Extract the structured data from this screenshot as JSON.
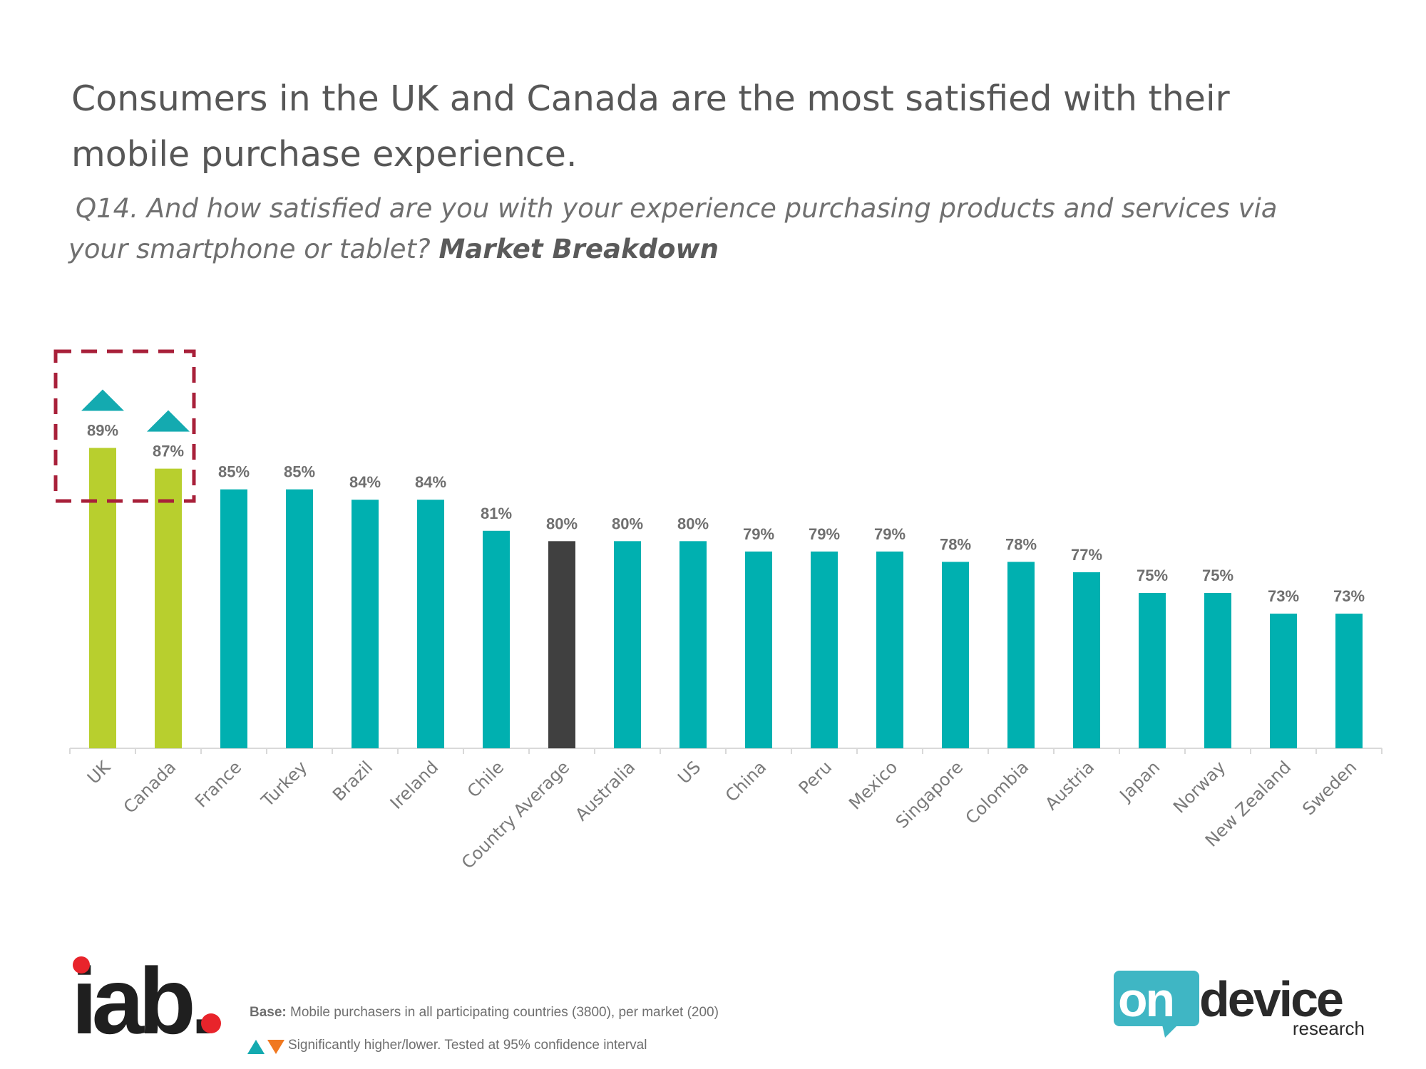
{
  "title": "Consumers in the UK and Canada are the most satisfied with their mobile purchase experience.",
  "subtitle": {
    "question": "Q14. And how satisfied are you with your experience purchasing products and services via your smartphone or tablet?",
    "emphasis": "Market Breakdown"
  },
  "colors": {
    "highlight": "#b8cf2e",
    "default": "#00b0b0",
    "average": "#404040",
    "box": "#a8203a",
    "up_marker": "#14aab0",
    "down_marker": "#f07820"
  },
  "chart_data": {
    "type": "bar",
    "categories": [
      "UK",
      "Canada",
      "France",
      "Turkey",
      "Brazil",
      "Ireland",
      "Chile",
      "Country Average",
      "Australia",
      "US",
      "China",
      "Peru",
      "Mexico",
      "Singapore",
      "Colombia",
      "Austria",
      "Japan",
      "Norway",
      "New Zealand",
      "Sweden"
    ],
    "values": [
      89,
      87,
      85,
      85,
      84,
      84,
      81,
      80,
      80,
      80,
      79,
      79,
      79,
      78,
      78,
      77,
      75,
      75,
      73,
      73
    ],
    "data_labels": [
      "89%",
      "87%",
      "85%",
      "85%",
      "84%",
      "84%",
      "81%",
      "80%",
      "80%",
      "80%",
      "79%",
      "79%",
      "79%",
      "78%",
      "78%",
      "77%",
      "75%",
      "75%",
      "73%",
      "73%"
    ],
    "bar_roles": [
      "highlight",
      "highlight",
      "default",
      "default",
      "default",
      "default",
      "default",
      "average",
      "default",
      "default",
      "default",
      "default",
      "default",
      "default",
      "default",
      "default",
      "default",
      "default",
      "default",
      "default"
    ],
    "significantly_higher": [
      "UK",
      "Canada"
    ],
    "highlighted_group": [
      "UK",
      "Canada"
    ],
    "ylim": [
      60,
      90
    ],
    "title": "",
    "xlabel": "",
    "ylabel": "",
    "grid": false,
    "legend": "none"
  },
  "footer": {
    "base_label": "Base:",
    "base_text": "Mobile purchasers in all participating countries (3800), per market (200)",
    "significance_text": "Significantly higher/lower. Tested at 95% confidence interval"
  },
  "logos": {
    "iab": "iab.",
    "ondevice_on": "on",
    "ondevice_device": "device",
    "ondevice_research": "research"
  }
}
